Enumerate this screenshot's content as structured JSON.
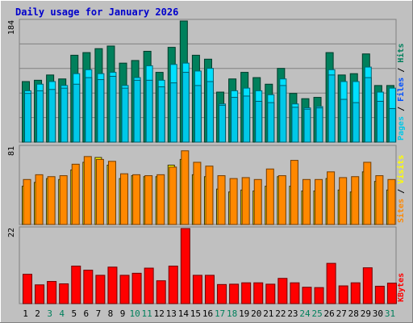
{
  "title": "Daily usage for January 2026",
  "colors": {
    "background": "#c0c0c0",
    "title": "#0000cc",
    "hits": "#00805c",
    "files": "#00e0ff",
    "pages": "#00c8e8",
    "visits": "#ffff00",
    "sites": "#ff8800",
    "kbytes": "#ff0000",
    "weekend": "#00805c",
    "weekday": "#000000",
    "gridline": "#808080"
  },
  "chart_data": [
    {
      "type": "bar",
      "panel": "hits-files-pages",
      "y_max_label": "184",
      "ylim": [
        0,
        184
      ],
      "legend": {
        "position": "right",
        "entries": [
          "Pages",
          "Files",
          "Hits"
        ],
        "separator": " / "
      },
      "categories": [
        "1",
        "2",
        "3",
        "4",
        "5",
        "6",
        "7",
        "8",
        "9",
        "10",
        "11",
        "12",
        "13",
        "14",
        "15",
        "16",
        "17",
        "18",
        "19",
        "20",
        "21",
        "22",
        "23",
        "24",
        "25",
        "26",
        "27",
        "28",
        "29",
        "30",
        "31"
      ],
      "weekend_days": [
        3,
        4,
        10,
        11,
        17,
        18,
        24,
        25,
        31
      ],
      "series": [
        {
          "name": "Hits",
          "values": [
            92,
            94,
            102,
            96,
            132,
            136,
            142,
            146,
            120,
            124,
            138,
            106,
            144,
            184,
            132,
            126,
            76,
            96,
            106,
            98,
            88,
            112,
            74,
            66,
            68,
            136,
            102,
            104,
            134,
            86,
            86
          ]
        },
        {
          "name": "Files",
          "values": [
            78,
            88,
            92,
            86,
            104,
            110,
            104,
            106,
            86,
            98,
            116,
            94,
            118,
            120,
            108,
            112,
            58,
            78,
            82,
            78,
            72,
            96,
            58,
            52,
            54,
            110,
            92,
            92,
            114,
            76,
            82
          ]
        },
        {
          "name": "Pages",
          "values": [
            74,
            78,
            80,
            82,
            88,
            98,
            95,
            100,
            82,
            94,
            94,
            84,
            90,
            106,
            86,
            92,
            56,
            68,
            70,
            62,
            60,
            86,
            53,
            50,
            52,
            102,
            65,
            60,
            98,
            62,
            51
          ]
        }
      ]
    },
    {
      "type": "bar",
      "panel": "visits-sites",
      "y_max_label": "81",
      "ylim": [
        0,
        81
      ],
      "legend": {
        "position": "right",
        "entries": [
          "Sites",
          "Visits"
        ],
        "separator": " / "
      },
      "categories": [
        "1",
        "2",
        "3",
        "4",
        "5",
        "6",
        "7",
        "8",
        "9",
        "10",
        "11",
        "12",
        "13",
        "14",
        "15",
        "16",
        "17",
        "18",
        "19",
        "20",
        "21",
        "22",
        "23",
        "24",
        "25",
        "26",
        "27",
        "28",
        "29",
        "30",
        "31"
      ],
      "series": [
        {
          "name": "Visits",
          "values": [
            40,
            44,
            48,
            47,
            57,
            65,
            70,
            62,
            48,
            51,
            50,
            50,
            62,
            68,
            52,
            50,
            37,
            34,
            36,
            35,
            40,
            50,
            40,
            35,
            35,
            48,
            36,
            34,
            55,
            45,
            36
          ]
        },
        {
          "name": "Sites",
          "values": [
            47,
            52,
            50,
            51,
            63,
            71,
            68,
            66,
            53,
            52,
            51,
            52,
            60,
            77,
            65,
            61,
            51,
            48,
            49,
            47,
            58,
            51,
            67,
            47,
            47,
            55,
            49,
            50,
            65,
            51,
            47
          ]
        }
      ]
    },
    {
      "type": "bar",
      "panel": "kbytes",
      "y_max_label": "22",
      "ylim": [
        0,
        22
      ],
      "legend": {
        "position": "right",
        "entries": [
          "KBytes"
        ],
        "separator": ""
      },
      "categories": [
        "1",
        "2",
        "3",
        "4",
        "5",
        "6",
        "7",
        "8",
        "9",
        "10",
        "11",
        "12",
        "13",
        "14",
        "15",
        "16",
        "17",
        "18",
        "19",
        "20",
        "21",
        "22",
        "23",
        "24",
        "25",
        "26",
        "27",
        "28",
        "29",
        "30",
        "31"
      ],
      "series": [
        {
          "name": "KBytes",
          "values": [
            8.6,
            5.5,
            6.5,
            5.8,
            11.0,
            9.8,
            8.3,
            10.7,
            8.3,
            8.9,
            10.4,
            6.7,
            11.0,
            22.0,
            8.3,
            8.3,
            5.6,
            5.7,
            6.1,
            6.1,
            5.7,
            7.4,
            6.1,
            4.8,
            4.7,
            11.8,
            5.2,
            6.1,
            10.5,
            5.1,
            6.0
          ]
        }
      ]
    }
  ]
}
